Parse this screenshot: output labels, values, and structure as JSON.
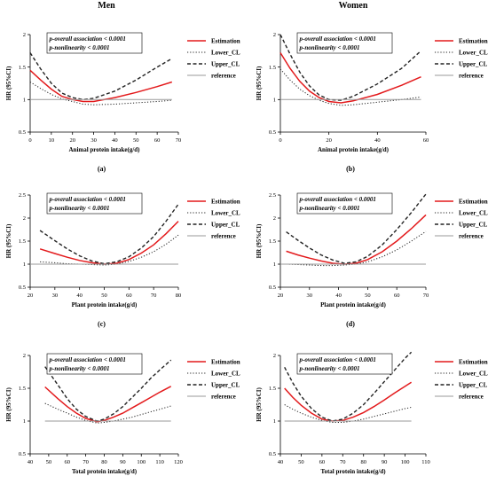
{
  "columns": [
    "Men",
    "Women"
  ],
  "legend": {
    "labels": [
      "Estimation",
      "Lower_CL",
      "Upper_CL",
      "reference"
    ]
  },
  "colors": {
    "estimation": "#e31a1c",
    "lower": "#222222",
    "upper": "#222222",
    "reference": "#9a9a9a",
    "axis": "#000000"
  },
  "stats": {
    "overall": "p-overall association < 0.0001",
    "nonlinearity": "p-nonlinearity < 0.0001"
  },
  "chart_data": [
    {
      "type": "line",
      "panel": "(a)",
      "xlabel": "Animal protein intake(g/d)",
      "ylabel": "HR (95%CI)",
      "xlim": [
        0,
        70
      ],
      "ylim": [
        0.5,
        2.0
      ],
      "xticks": [
        0,
        10,
        20,
        30,
        40,
        50,
        60,
        70
      ],
      "yticks": [
        0.5,
        1.0,
        1.5,
        2.0
      ],
      "series": [
        {
          "name": "Estimation",
          "x": [
            0,
            5,
            10,
            15,
            20,
            25,
            30,
            40,
            50,
            60,
            67
          ],
          "values": [
            1.45,
            1.3,
            1.16,
            1.05,
            1.0,
            0.97,
            0.97,
            1.03,
            1.11,
            1.2,
            1.27
          ]
        },
        {
          "name": "Lower_CL",
          "x": [
            0,
            5,
            10,
            15,
            20,
            25,
            30,
            40,
            50,
            60,
            67
          ],
          "values": [
            1.27,
            1.17,
            1.08,
            1.01,
            0.97,
            0.93,
            0.92,
            0.93,
            0.95,
            0.97,
            0.99
          ]
        },
        {
          "name": "Upper_CL",
          "x": [
            0,
            5,
            10,
            15,
            20,
            25,
            30,
            40,
            50,
            60,
            67
          ],
          "values": [
            1.72,
            1.47,
            1.25,
            1.1,
            1.03,
            1.0,
            1.02,
            1.13,
            1.3,
            1.5,
            1.63
          ]
        },
        {
          "name": "reference",
          "x": [
            0,
            67
          ],
          "values": [
            1.0,
            1.0
          ]
        }
      ]
    },
    {
      "type": "line",
      "panel": "(b)",
      "xlabel": "Animal protein intake(g/d)",
      "ylabel": "HR (95%CI)",
      "xlim": [
        0,
        60
      ],
      "ylim": [
        0.5,
        2.0
      ],
      "xticks": [
        0,
        20,
        40,
        60
      ],
      "yticks": [
        0.5,
        1.0,
        1.5,
        2.0
      ],
      "series": [
        {
          "name": "Estimation",
          "x": [
            0,
            4,
            8,
            12,
            16,
            20,
            25,
            30,
            40,
            50,
            58
          ],
          "values": [
            1.72,
            1.48,
            1.28,
            1.13,
            1.03,
            0.97,
            0.95,
            0.98,
            1.08,
            1.22,
            1.35
          ]
        },
        {
          "name": "Lower_CL",
          "x": [
            0,
            4,
            8,
            12,
            16,
            20,
            25,
            30,
            40,
            50,
            58
          ],
          "values": [
            1.47,
            1.3,
            1.16,
            1.06,
            0.99,
            0.94,
            0.91,
            0.92,
            0.96,
            1.0,
            1.04
          ]
        },
        {
          "name": "Upper_CL",
          "x": [
            0,
            4,
            8,
            12,
            16,
            20,
            25,
            30,
            40,
            50,
            58
          ],
          "values": [
            2.0,
            1.7,
            1.42,
            1.21,
            1.07,
            1.0,
            0.99,
            1.05,
            1.24,
            1.48,
            1.75
          ]
        },
        {
          "name": "reference",
          "x": [
            0,
            58
          ],
          "values": [
            1.0,
            1.0
          ]
        }
      ]
    },
    {
      "type": "line",
      "panel": "(c)",
      "xlabel": "Plant protein intake(g/d)",
      "ylabel": "HR (95%CI)",
      "xlim": [
        20,
        80
      ],
      "ylim": [
        0.5,
        2.5
      ],
      "xticks": [
        20,
        30,
        40,
        50,
        60,
        70,
        80
      ],
      "yticks": [
        0.5,
        1.0,
        1.5,
        2.0,
        2.5
      ],
      "series": [
        {
          "name": "Estimation",
          "x": [
            24,
            30,
            35,
            40,
            45,
            50,
            55,
            60,
            65,
            70,
            75,
            80
          ],
          "values": [
            1.33,
            1.23,
            1.15,
            1.08,
            1.03,
            1.0,
            1.02,
            1.1,
            1.24,
            1.42,
            1.66,
            1.93
          ]
        },
        {
          "name": "Lower_CL",
          "x": [
            24,
            30,
            35,
            40,
            45,
            50,
            55,
            60,
            65,
            70,
            75,
            80
          ],
          "values": [
            1.05,
            1.03,
            1.01,
            1.0,
            0.99,
            0.98,
            1.0,
            1.06,
            1.15,
            1.27,
            1.43,
            1.63
          ]
        },
        {
          "name": "Upper_CL",
          "x": [
            24,
            30,
            35,
            40,
            45,
            50,
            55,
            60,
            65,
            70,
            75,
            80
          ],
          "values": [
            1.73,
            1.51,
            1.33,
            1.18,
            1.07,
            1.01,
            1.05,
            1.16,
            1.35,
            1.6,
            1.93,
            2.3
          ]
        },
        {
          "name": "reference",
          "x": [
            20,
            80
          ],
          "values": [
            1.0,
            1.0
          ]
        }
      ]
    },
    {
      "type": "line",
      "panel": "(d)",
      "xlabel": "Plant protein intake(g/d)",
      "ylabel": "HR (95%CI)",
      "xlim": [
        20,
        70
      ],
      "ylim": [
        0.5,
        2.5
      ],
      "xticks": [
        20,
        30,
        40,
        50,
        60,
        70
      ],
      "yticks": [
        0.5,
        1.0,
        1.5,
        2.0,
        2.5
      ],
      "series": [
        {
          "name": "Estimation",
          "x": [
            22,
            26,
            30,
            34,
            38,
            42,
            46,
            50,
            55,
            60,
            65,
            70
          ],
          "values": [
            1.28,
            1.2,
            1.13,
            1.07,
            1.02,
            1.0,
            1.02,
            1.1,
            1.27,
            1.5,
            1.77,
            2.07
          ]
        },
        {
          "name": "Lower_CL",
          "x": [
            22,
            26,
            30,
            34,
            38,
            42,
            46,
            50,
            55,
            60,
            65,
            70
          ],
          "values": [
            1.0,
            0.99,
            0.98,
            0.97,
            0.97,
            0.98,
            1.0,
            1.05,
            1.16,
            1.31,
            1.5,
            1.71
          ]
        },
        {
          "name": "Upper_CL",
          "x": [
            22,
            26,
            30,
            34,
            38,
            42,
            46,
            50,
            55,
            60,
            65,
            70
          ],
          "values": [
            1.7,
            1.52,
            1.35,
            1.2,
            1.09,
            1.02,
            1.05,
            1.17,
            1.42,
            1.75,
            2.12,
            2.52
          ]
        },
        {
          "name": "reference",
          "x": [
            20,
            70
          ],
          "values": [
            1.0,
            1.0
          ]
        }
      ]
    },
    {
      "type": "line",
      "panel": "(e)",
      "xlabel": "Total protein intake(g/d)",
      "ylabel": "HR (95%CI)",
      "xlim": [
        40,
        120
      ],
      "ylim": [
        0.5,
        2.0
      ],
      "xticks": [
        40,
        50,
        60,
        70,
        80,
        90,
        100,
        110,
        120
      ],
      "yticks": [
        0.5,
        1.0,
        1.5,
        2.0
      ],
      "series": [
        {
          "name": "Estimation",
          "x": [
            48,
            55,
            60,
            65,
            70,
            76,
            80,
            85,
            90,
            95,
            100,
            105,
            110,
            116
          ],
          "values": [
            1.52,
            1.34,
            1.22,
            1.12,
            1.04,
            0.99,
            1.01,
            1.06,
            1.12,
            1.2,
            1.28,
            1.36,
            1.44,
            1.53
          ]
        },
        {
          "name": "Lower_CL",
          "x": [
            48,
            55,
            60,
            65,
            70,
            76,
            80,
            85,
            90,
            95,
            100,
            105,
            110,
            116
          ],
          "values": [
            1.27,
            1.18,
            1.12,
            1.06,
            1.01,
            0.97,
            0.98,
            1.0,
            1.03,
            1.06,
            1.1,
            1.14,
            1.18,
            1.23
          ]
        },
        {
          "name": "Upper_CL",
          "x": [
            48,
            55,
            60,
            65,
            70,
            76,
            80,
            85,
            90,
            95,
            100,
            105,
            110,
            116
          ],
          "values": [
            1.83,
            1.55,
            1.34,
            1.18,
            1.07,
            1.0,
            1.03,
            1.11,
            1.22,
            1.36,
            1.5,
            1.65,
            1.78,
            1.93
          ]
        },
        {
          "name": "reference",
          "x": [
            48,
            116
          ],
          "values": [
            1.0,
            1.0
          ]
        }
      ]
    },
    {
      "type": "line",
      "panel": "(f)",
      "xlabel": "Total protein intake(g/d)",
      "ylabel": "HR (95%CI)",
      "xlim": [
        40,
        110
      ],
      "ylim": [
        0.5,
        2.0
      ],
      "xticks": [
        40,
        50,
        60,
        70,
        80,
        90,
        100,
        110
      ],
      "yticks": [
        0.5,
        1.0,
        1.5,
        2.0
      ],
      "series": [
        {
          "name": "Estimation",
          "x": [
            42,
            46,
            50,
            55,
            60,
            65,
            70,
            75,
            80,
            85,
            90,
            95,
            100,
            103
          ],
          "values": [
            1.5,
            1.36,
            1.24,
            1.12,
            1.03,
            1.0,
            1.01,
            1.06,
            1.13,
            1.22,
            1.32,
            1.43,
            1.53,
            1.59
          ]
        },
        {
          "name": "Lower_CL",
          "x": [
            42,
            46,
            50,
            55,
            60,
            65,
            70,
            75,
            80,
            85,
            90,
            95,
            100,
            103
          ],
          "values": [
            1.25,
            1.18,
            1.12,
            1.06,
            1.01,
            0.98,
            0.98,
            1.0,
            1.03,
            1.07,
            1.11,
            1.15,
            1.19,
            1.21
          ]
        },
        {
          "name": "Upper_CL",
          "x": [
            42,
            46,
            50,
            55,
            60,
            65,
            70,
            75,
            80,
            85,
            90,
            95,
            100,
            103
          ],
          "values": [
            1.82,
            1.58,
            1.38,
            1.19,
            1.06,
            1.0,
            1.03,
            1.12,
            1.25,
            1.42,
            1.6,
            1.78,
            1.96,
            2.05
          ]
        },
        {
          "name": "reference",
          "x": [
            42,
            103
          ],
          "values": [
            1.0,
            1.0
          ]
        }
      ]
    }
  ]
}
